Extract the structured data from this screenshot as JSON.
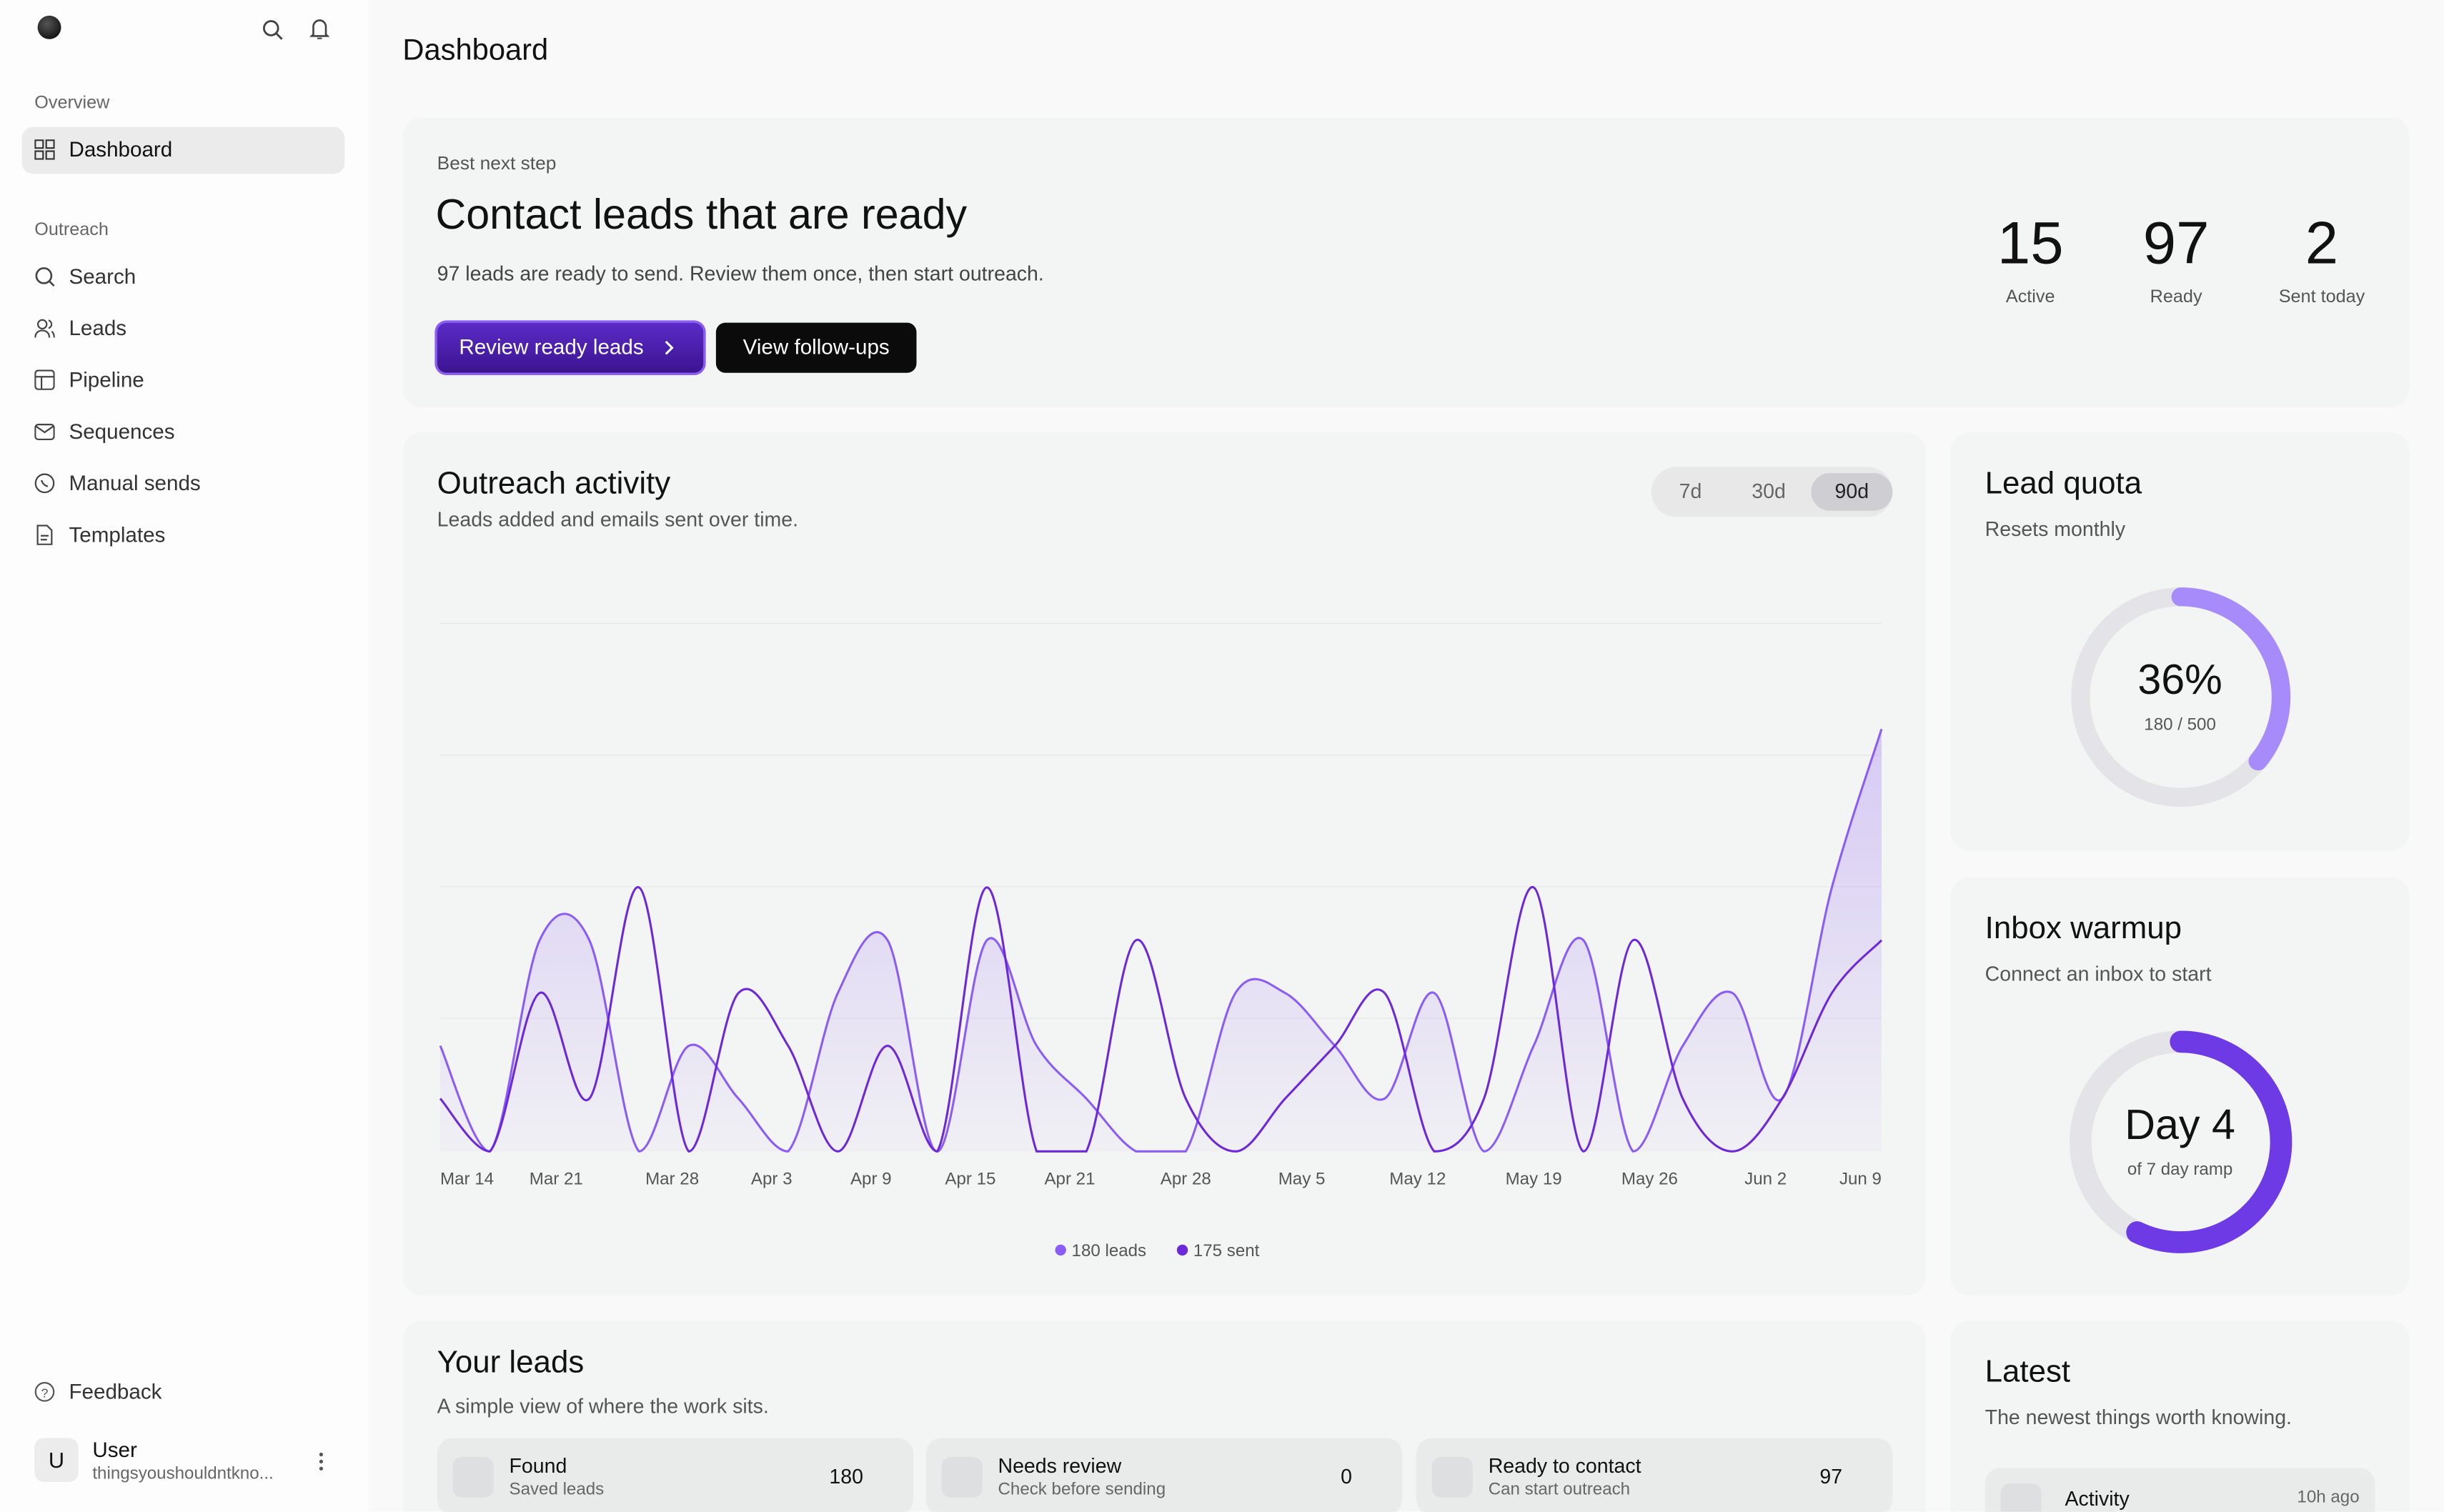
{
  "sidebar": {
    "sections": [
      {
        "title": "Overview",
        "items": [
          "Dashboard"
        ]
      },
      {
        "title": "Outreach",
        "items": [
          "Search",
          "Leads",
          "Pipeline",
          "Sequences",
          "Manual sends",
          "Templates"
        ]
      }
    ],
    "feedback": "Feedback",
    "user": {
      "avatar": "U",
      "name": "User",
      "email": "thingsyoushouldntkno..."
    }
  },
  "page_title": "Dashboard",
  "hero": {
    "eyebrow": "Best next step",
    "title": "Contact leads that are ready",
    "text": "97 leads are ready to send. Review them once, then start outreach.",
    "primary_button": "Review ready leads",
    "secondary_button": "View follow-ups",
    "stats": [
      {
        "value": "15",
        "label": "Active"
      },
      {
        "value": "97",
        "label": "Ready"
      },
      {
        "value": "2",
        "label": "Sent today"
      }
    ]
  },
  "chart_data": {
    "type": "line",
    "title": "Outreach activity",
    "subtitle": "Leads added and emails sent over time.",
    "ranges": [
      "7d",
      "30d",
      "90d"
    ],
    "active_range": "90d",
    "x": [
      0,
      3,
      6,
      9,
      12,
      15,
      18,
      21,
      24,
      27,
      30,
      33,
      36,
      39,
      42,
      45,
      48,
      51,
      54,
      57,
      60,
      63,
      66,
      69,
      72,
      75,
      78,
      81,
      84,
      87
    ],
    "xlim": [
      0,
      87
    ],
    "xticks": [
      {
        "value": 0,
        "label": "Mar 14"
      },
      {
        "value": 7,
        "label": "Mar 21"
      },
      {
        "value": 14,
        "label": "Mar 28"
      },
      {
        "value": 20,
        "label": "Apr 3"
      },
      {
        "value": 26,
        "label": "Apr 9"
      },
      {
        "value": 32,
        "label": "Apr 15"
      },
      {
        "value": 38,
        "label": "Apr 21"
      },
      {
        "value": 45,
        "label": "Apr 28"
      },
      {
        "value": 52,
        "label": "May 5"
      },
      {
        "value": 59,
        "label": "May 12"
      },
      {
        "value": 66,
        "label": "May 19"
      },
      {
        "value": 73,
        "label": "May 26"
      },
      {
        "value": 80,
        "label": "Jun 2"
      },
      {
        "value": 87,
        "label": "Jun 9"
      }
    ],
    "ylim": [
      0,
      10
    ],
    "series": [
      {
        "name": "180 leads",
        "color": "#8b5cf6",
        "values": [
          2,
          0,
          4,
          4,
          0,
          2,
          1,
          0,
          3,
          4,
          0,
          4,
          2,
          1,
          0,
          0,
          3,
          3,
          2,
          1,
          3,
          0,
          2,
          4,
          0,
          2,
          3,
          1,
          5,
          8
        ]
      },
      {
        "name": "175 sent",
        "color": "#6d28d9",
        "values": [
          1,
          0,
          3,
          1,
          5,
          0,
          3,
          2,
          0,
          2,
          0,
          5,
          0,
          0,
          4,
          1,
          0,
          1,
          2,
          3,
          0,
          1,
          5,
          0,
          4,
          1,
          0,
          1,
          3,
          4
        ]
      }
    ]
  },
  "quota": {
    "title": "Lead quota",
    "subtitle": "Resets monthly",
    "percent": "36%",
    "detail": "180 / 500",
    "used": 180,
    "total": 500
  },
  "warmup": {
    "title": "Inbox warmup",
    "subtitle": "Connect an inbox to start",
    "big": "Day 4",
    "detail": "of 7 day ramp",
    "day": 4,
    "days": 7
  },
  "leads_panel": {
    "title": "Your leads",
    "subtitle": "A simple view of where the work sits.",
    "tiles": [
      {
        "title": "Found",
        "sub": "Saved leads",
        "count": "180"
      },
      {
        "title": "Needs review",
        "sub": "Check before sending",
        "count": "0"
      },
      {
        "title": "Ready to contact",
        "sub": "Can start outreach",
        "count": "97"
      }
    ]
  },
  "latest": {
    "title": "Latest",
    "subtitle": "The newest things worth knowing.",
    "item": {
      "title": "Activity",
      "time": "10h ago"
    }
  }
}
